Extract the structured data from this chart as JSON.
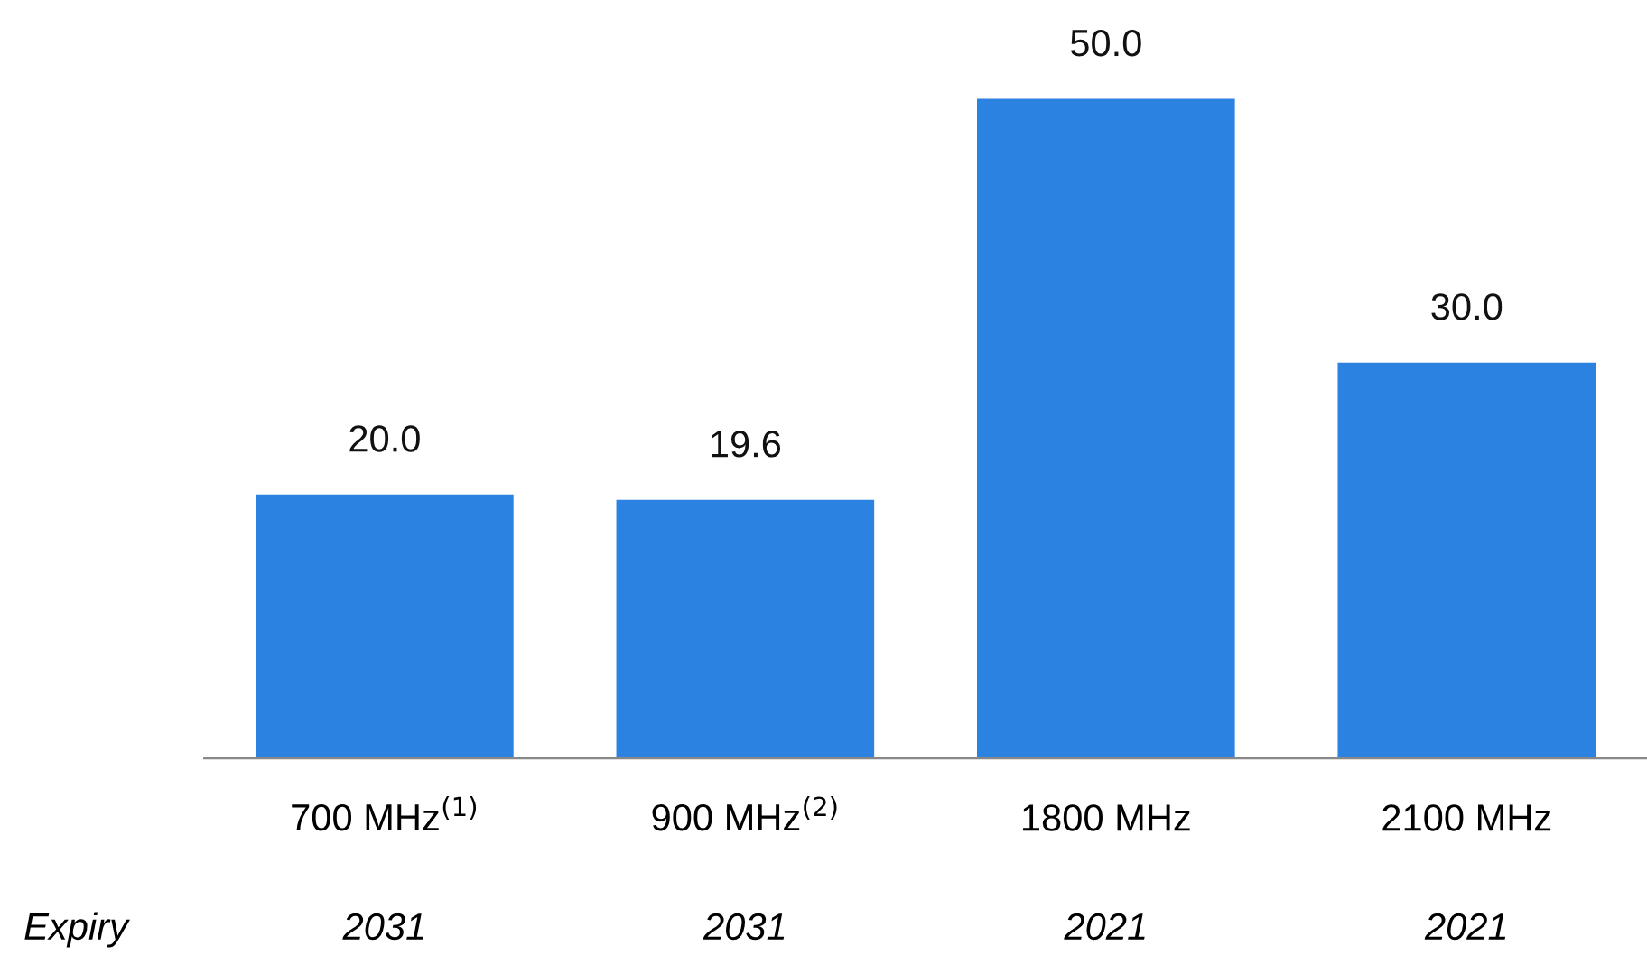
{
  "chart_data": {
    "type": "bar",
    "categories": [
      "700 MHz$^{(1)}$",
      "900 MHz$^{(2)}$",
      "1800 MHz",
      "2100 MHz"
    ],
    "values": [
      20.0,
      19.6,
      50.0,
      30.0
    ],
    "value_labels": [
      "20.0",
      "19.6",
      "50.0",
      "30.0"
    ],
    "color": "#2b82e0",
    "annotations": [
      "Expiry",
      "2031",
      "2031",
      "2021",
      "2021"
    ]
  }
}
